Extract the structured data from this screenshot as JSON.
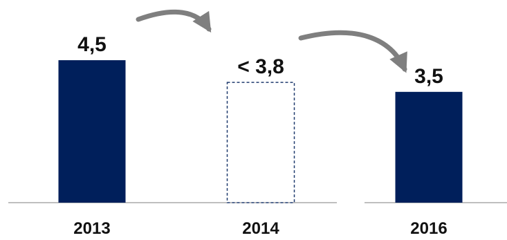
{
  "chart_data": {
    "type": "bar",
    "categories": [
      "2013",
      "2014",
      "2016"
    ],
    "values": [
      4.5,
      3.8,
      3.5
    ],
    "bar_styles": [
      "solid",
      "dashed-outline",
      "solid"
    ],
    "data_labels": [
      "4,5",
      "< 3,8",
      "3,5"
    ],
    "title": "",
    "xlabel": "",
    "ylabel": "",
    "ylim": [
      0,
      5.2
    ],
    "grid": false,
    "legend": "none",
    "arrows": [
      {
        "from": "2013",
        "to": "2014"
      },
      {
        "from": "2014",
        "to": "2016"
      }
    ],
    "colors": {
      "bar_fill": "#001f5b",
      "dashed_outline": "#1f3a6e",
      "arrow": "#7f7f7f",
      "baseline": "#7f7f7f",
      "text": "#111111"
    }
  }
}
